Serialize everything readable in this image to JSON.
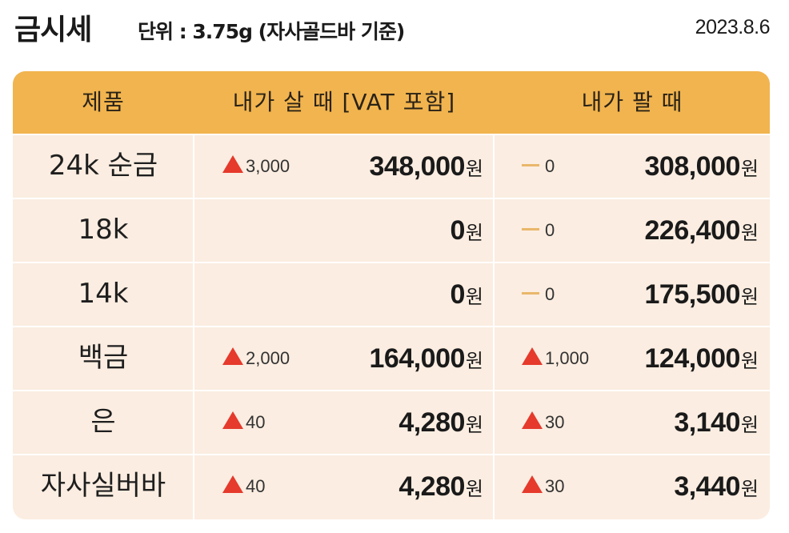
{
  "header": {
    "title": "금시세",
    "unit": "단위 : 3.75g (자사골드바 기준)",
    "date": "2023.8.6"
  },
  "columns": {
    "product": "제품",
    "buy": "내가 살 때 [VAT 포함]",
    "sell": "내가 팔 때"
  },
  "currency_suffix": "원",
  "rows": [
    {
      "product": "24k 순금",
      "buy_change": "3,000",
      "buy_dir": "up",
      "buy_price": "348,000",
      "sell_change": "0",
      "sell_dir": "flat",
      "sell_price": "308,000"
    },
    {
      "product": "18k",
      "buy_change": "",
      "buy_dir": "none",
      "buy_price": "0",
      "sell_change": "0",
      "sell_dir": "flat",
      "sell_price": "226,400"
    },
    {
      "product": "14k",
      "buy_change": "",
      "buy_dir": "none",
      "buy_price": "0",
      "sell_change": "0",
      "sell_dir": "flat",
      "sell_price": "175,500"
    },
    {
      "product": "백금",
      "buy_change": "2,000",
      "buy_dir": "up",
      "buy_price": "164,000",
      "sell_change": "1,000",
      "sell_dir": "up",
      "sell_price": "124,000"
    },
    {
      "product": "은",
      "buy_change": "40",
      "buy_dir": "up",
      "buy_price": "4,280",
      "sell_change": "30",
      "sell_dir": "up",
      "sell_price": "3,140"
    },
    {
      "product": "자사실버바",
      "buy_change": "40",
      "buy_dir": "up",
      "buy_price": "4,280",
      "sell_change": "30",
      "sell_dir": "up",
      "sell_price": "3,440"
    }
  ],
  "colors": {
    "header_bg": "#f1b44f",
    "row_bg": "#fbede1",
    "up_arrow": "#e53a2c",
    "flat_dash": "#e9b76a"
  }
}
